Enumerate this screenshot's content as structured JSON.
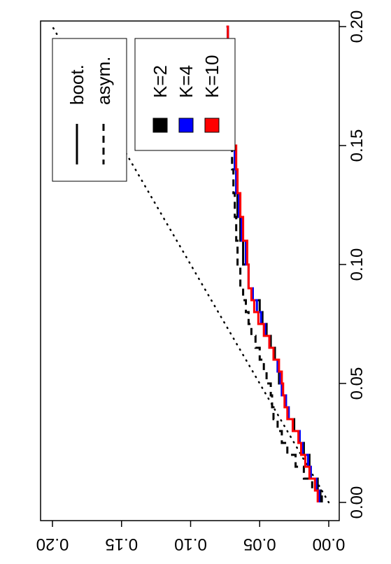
{
  "chart_data": {
    "type": "line",
    "title": "",
    "xlabel": "",
    "ylabel": "",
    "xlim": [
      0.0,
      0.2
    ],
    "ylim": [
      0.0,
      0.2
    ],
    "x_ticks": [
      "0.00",
      "0.05",
      "0.10",
      "0.15",
      "0.20"
    ],
    "y_ticks": [
      "0.00",
      "0.05",
      "0.10",
      "0.15",
      "0.20"
    ],
    "orientation": "rotated 90 degrees clockwise",
    "grid": false,
    "legends": [
      {
        "placement": "top-right",
        "entries": [
          {
            "label": "boot.",
            "linestyle": "solid"
          },
          {
            "label": "asym.",
            "linestyle": "dashed"
          }
        ]
      },
      {
        "placement": "top-right",
        "entries": [
          {
            "label": "K=2",
            "color": "#000000"
          },
          {
            "label": "K=4",
            "color": "#0000ff"
          },
          {
            "label": "K=10",
            "color": "#ff0000"
          }
        ]
      }
    ],
    "reference_line": {
      "style": "dotted",
      "x": [
        0.0,
        0.2
      ],
      "y": [
        0.0,
        0.2
      ]
    },
    "series": [
      {
        "name": "K=2",
        "linestyle": "solid",
        "color": "#000000",
        "x": [
          0.0,
          0.005,
          0.01,
          0.015,
          0.02,
          0.025,
          0.03,
          0.035,
          0.04,
          0.045,
          0.05,
          0.055,
          0.06,
          0.065,
          0.07,
          0.075,
          0.08,
          0.085,
          0.09,
          0.1,
          0.11,
          0.12,
          0.13,
          0.14,
          0.15,
          0.16,
          0.17,
          0.18,
          0.19,
          0.2
        ],
        "y": [
          0.006,
          0.008,
          0.013,
          0.014,
          0.018,
          0.021,
          0.025,
          0.029,
          0.031,
          0.034,
          0.036,
          0.037,
          0.039,
          0.042,
          0.045,
          0.048,
          0.05,
          0.055,
          0.058,
          0.062,
          0.064,
          0.066,
          0.067,
          0.068,
          0.07,
          0.071,
          0.072,
          0.073,
          0.073,
          0.074
        ]
      },
      {
        "name": "K=4",
        "linestyle": "solid",
        "color": "#0000ff",
        "x": [
          0.0,
          0.005,
          0.01,
          0.015,
          0.02,
          0.025,
          0.03,
          0.035,
          0.04,
          0.045,
          0.05,
          0.055,
          0.06,
          0.065,
          0.07,
          0.075,
          0.08,
          0.085,
          0.09,
          0.1,
          0.11,
          0.12,
          0.13,
          0.14,
          0.15,
          0.16,
          0.17,
          0.18,
          0.19,
          0.2
        ],
        "y": [
          0.007,
          0.009,
          0.013,
          0.015,
          0.019,
          0.021,
          0.026,
          0.029,
          0.031,
          0.034,
          0.035,
          0.037,
          0.04,
          0.043,
          0.046,
          0.049,
          0.052,
          0.055,
          0.058,
          0.06,
          0.063,
          0.065,
          0.067,
          0.068,
          0.069,
          0.07,
          0.071,
          0.072,
          0.073,
          0.074
        ]
      },
      {
        "name": "K=10",
        "linestyle": "solid",
        "color": "#ff0000",
        "x": [
          0.0,
          0.005,
          0.01,
          0.015,
          0.02,
          0.025,
          0.03,
          0.035,
          0.04,
          0.045,
          0.05,
          0.055,
          0.06,
          0.065,
          0.07,
          0.075,
          0.08,
          0.085,
          0.09,
          0.1,
          0.11,
          0.12,
          0.13,
          0.14,
          0.15,
          0.16,
          0.17,
          0.18,
          0.19,
          0.2
        ],
        "y": [
          0.008,
          0.01,
          0.014,
          0.017,
          0.02,
          0.022,
          0.026,
          0.03,
          0.032,
          0.033,
          0.034,
          0.036,
          0.04,
          0.043,
          0.047,
          0.051,
          0.054,
          0.056,
          0.058,
          0.059,
          0.062,
          0.064,
          0.066,
          0.067,
          0.069,
          0.07,
          0.071,
          0.072,
          0.073,
          0.074
        ]
      },
      {
        "name": "asym.",
        "linestyle": "dashed",
        "color": "#000000",
        "x": [
          0.0,
          0.005,
          0.01,
          0.015,
          0.02,
          0.025,
          0.03,
          0.035,
          0.04,
          0.045,
          0.05,
          0.055,
          0.06,
          0.065,
          0.07,
          0.075,
          0.08,
          0.085,
          0.09,
          0.1,
          0.11,
          0.12,
          0.13,
          0.14,
          0.15,
          0.16,
          0.17,
          0.18,
          0.19,
          0.2
        ],
        "y": [
          0.005,
          0.012,
          0.018,
          0.024,
          0.03,
          0.034,
          0.037,
          0.04,
          0.041,
          0.042,
          0.045,
          0.047,
          0.05,
          0.053,
          0.056,
          0.058,
          0.06,
          0.062,
          0.064,
          0.066,
          0.067,
          0.068,
          0.069,
          0.07,
          0.071,
          0.072,
          0.072,
          0.073,
          0.073,
          0.074
        ]
      }
    ]
  }
}
